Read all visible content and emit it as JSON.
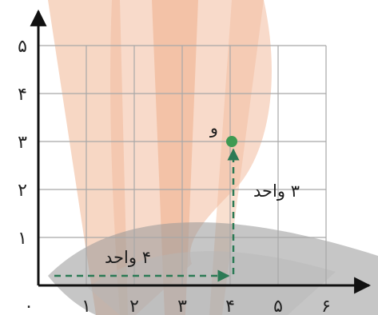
{
  "colors": {
    "background": "#ffffff",
    "watermark_orange": "#f1bb9c",
    "watermark_gray": "#8a8a8a",
    "grid": "#a8a8a8",
    "axis": "#111111",
    "arrow": "#2b7a55",
    "point": "#3e9a52"
  },
  "grid": {
    "x_range": [
      0,
      6
    ],
    "y_range": [
      0,
      5
    ]
  },
  "axes": {
    "origin_label": "٠",
    "x_ticks": [
      {
        "value": 1,
        "label": "١"
      },
      {
        "value": 2,
        "label": "٢"
      },
      {
        "value": 3,
        "label": "٣"
      },
      {
        "value": 4,
        "label": "۴"
      },
      {
        "value": 5,
        "label": "۵"
      },
      {
        "value": 6,
        "label": "۶"
      }
    ],
    "y_ticks": [
      {
        "value": 1,
        "label": "١"
      },
      {
        "value": 2,
        "label": "٢"
      },
      {
        "value": 3,
        "label": "٣"
      },
      {
        "value": 4,
        "label": "۴"
      },
      {
        "value": 5,
        "label": "۵"
      }
    ]
  },
  "point": {
    "label": "و",
    "x": 4,
    "y": 3
  },
  "moves": [
    {
      "label": "۴ واحد",
      "from": [
        0,
        0
      ],
      "to": [
        4,
        0
      ]
    },
    {
      "label": "٣ واحد",
      "from": [
        4,
        0
      ],
      "to": [
        4,
        3
      ]
    }
  ]
}
